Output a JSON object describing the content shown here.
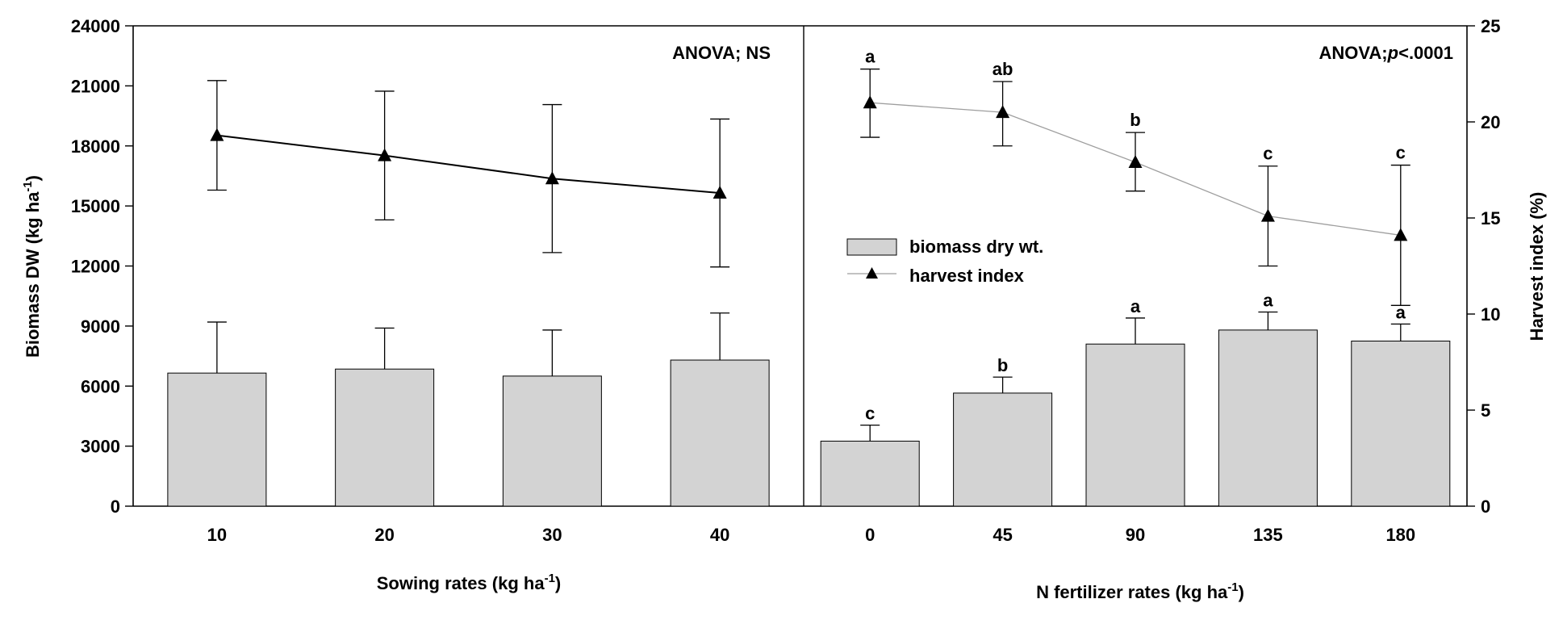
{
  "chart_data": {
    "type": "bar",
    "y_left": {
      "label_main": "Biomass DW (kg ha",
      "label_sup": "-1",
      "label_tail": ")",
      "ylim": [
        0,
        24000
      ],
      "ticks": [
        "0",
        "3000",
        "6000",
        "9000",
        "12000",
        "15000",
        "18000",
        "21000",
        "24000"
      ]
    },
    "y_right": {
      "label": "Harvest index (%)",
      "ylim": [
        0,
        25
      ],
      "ticks": [
        "0",
        "5",
        "10",
        "15",
        "20",
        "25"
      ]
    },
    "panels": [
      {
        "id": "sowing",
        "annotation": "ANOVA; NS",
        "annotation_parts": [
          "ANOVA; NS"
        ],
        "xlabel_main": "Sowing rates (kg ha",
        "xlabel_sup": "-1",
        "xlabel_tail": ")",
        "categories": [
          "10",
          "20",
          "30",
          "40"
        ],
        "biomass": [
          6650,
          6850,
          6500,
          7300
        ],
        "biomass_err": [
          2550,
          2050,
          2300,
          2350
        ],
        "biomass_letters": [],
        "harvest_index": [
          19.3,
          18.25,
          17.05,
          16.3
        ],
        "harvest_err_up": [
          2.85,
          3.35,
          3.85,
          3.85
        ],
        "harvest_err_down": [
          2.85,
          3.35,
          3.85,
          3.85
        ],
        "harvest_letters": []
      },
      {
        "id": "nitrogen",
        "annotation": "ANOVA;p<.0001",
        "annotation_parts": [
          "ANOVA;",
          "p",
          "<.0001"
        ],
        "xlabel_main": "N fertilizer rates (kg ha",
        "xlabel_sup": "-1",
        "xlabel_tail": ")",
        "categories": [
          "0",
          "45",
          "90",
          "135",
          "180"
        ],
        "biomass": [
          3250,
          5650,
          8100,
          8800,
          8250
        ],
        "biomass_err": [
          800,
          800,
          1300,
          900,
          850
        ],
        "biomass_letters": [
          "c",
          "b",
          "a",
          "a",
          "a"
        ],
        "harvest_index": [
          21.0,
          20.5,
          17.9,
          15.1,
          14.1
        ],
        "harvest_err_up": [
          1.75,
          1.6,
          1.55,
          2.6,
          3.65
        ],
        "harvest_err_down": [
          1.8,
          1.75,
          1.5,
          2.6,
          3.65
        ],
        "harvest_letters": [
          "a",
          "ab",
          "b",
          "c",
          "c"
        ]
      }
    ],
    "legend": {
      "placement": "center-left of right panel",
      "items": [
        {
          "label": "biomass dry wt.",
          "kind": "bar"
        },
        {
          "label": "harvest index",
          "kind": "line-triangle"
        }
      ]
    },
    "colors": {
      "bar_fill": "#d3d3d3",
      "line_left": "#000000",
      "line_right": "#9e9e9e",
      "marker": "#000000"
    }
  }
}
